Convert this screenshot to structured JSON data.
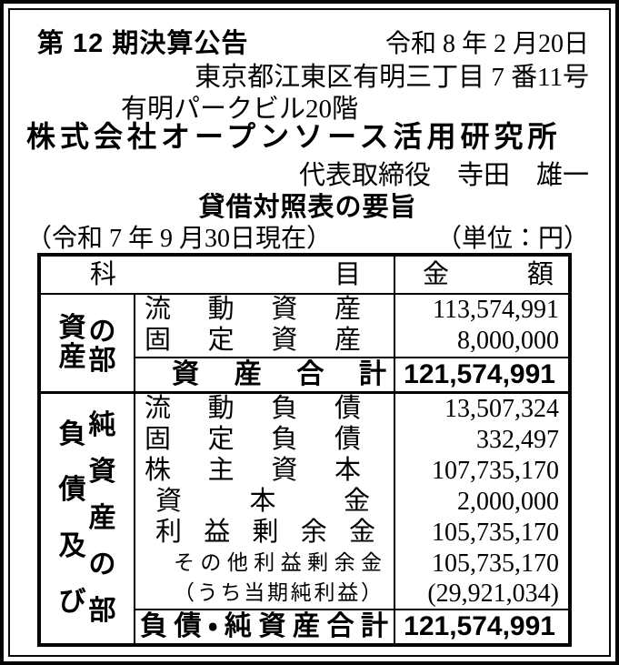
{
  "notice": {
    "term_title": "第 12 期決算公告",
    "date": "令和 8 年 2 月20日",
    "address_line1": "東京都江東区有明三丁目 7 番11号",
    "address_line2": "有明パークビル20階",
    "company_name": "株式会社オープンソース活用研究所",
    "representative": "代表取締役　寺田　雄一",
    "statement_title": "貸借対照表の要旨",
    "as_of_date": "（令和 7 年 9 月30日現在）",
    "unit_label": "（単位：円）"
  },
  "balance_sheet": {
    "header": {
      "item_column": "科目",
      "amount_column": "金額"
    },
    "assets": {
      "label_col1": "資産",
      "label_col2": "の部",
      "rows": [
        {
          "item": "流動資産",
          "amount": "113,574,991"
        },
        {
          "item": "固定資産",
          "amount": "8,000,000"
        }
      ],
      "total": {
        "item": "資産合計",
        "amount": "121,574,991"
      }
    },
    "liabilities_net_assets": {
      "label_col1": "負債及び",
      "label_col2": "純資産の部",
      "rows": [
        {
          "item": "流動負債",
          "amount": "13,507,324"
        },
        {
          "item": "固定負債",
          "amount": "332,497"
        },
        {
          "item": "株主資本",
          "amount": "107,735,170"
        },
        {
          "item": "資本金",
          "amount": "2,000,000"
        },
        {
          "item": "利益剰余金",
          "amount": "105,735,170"
        },
        {
          "item": "その他利益剰余金",
          "amount": "105,735,170"
        },
        {
          "item": "（うち当期純利益）",
          "amount": "(29,921,034)"
        }
      ],
      "total": {
        "item": "負債・純資産合計",
        "amount": "121,574,991"
      }
    }
  },
  "colors": {
    "ink": "#000000",
    "paper": "#ffffff"
  }
}
